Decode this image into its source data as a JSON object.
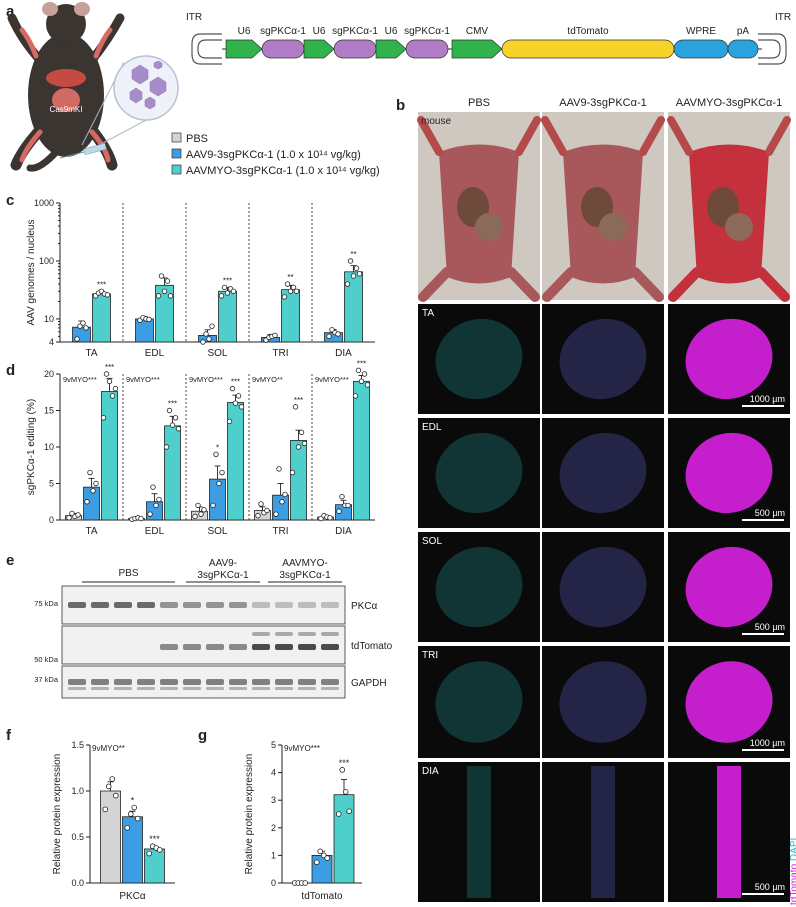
{
  "figure": {
    "panel_labels": {
      "a": "a",
      "b": "b",
      "c": "c",
      "d": "d",
      "e": "e",
      "f": "f",
      "g": "g"
    },
    "mouse_label": "Cas9mKI",
    "legend": [
      {
        "name": "PBS",
        "color": "#d4d4d4"
      },
      {
        "name": "AAV9-3sgPKCα-1 (1.0 x 10¹⁴ vg/kg)",
        "color": "#3d9de3"
      },
      {
        "name": "AAVMYO-3sgPKCα-1 (1.0 x 10¹⁴ vg/kg)",
        "color": "#4ecfcb"
      }
    ],
    "construct": {
      "itr_left": "ITR",
      "itr_right": "ITR",
      "elements": [
        {
          "label": "U6",
          "color": "#2fb34a"
        },
        {
          "label": "sgPKCα-1",
          "color": "#b07cc6"
        },
        {
          "label": "U6",
          "color": "#2fb34a"
        },
        {
          "label": "sgPKCα-1",
          "color": "#b07cc6"
        },
        {
          "label": "U6",
          "color": "#2fb34a"
        },
        {
          "label": "sgPKCα-1",
          "color": "#b07cc6"
        },
        {
          "label": "CMV",
          "color": "#2fb34a"
        },
        {
          "label": "tdTomato",
          "color": "#f7d32a"
        },
        {
          "label": "WPRE",
          "color": "#2aa2dd"
        },
        {
          "label": "pA",
          "color": "#2aa2dd"
        }
      ]
    },
    "panel_b": {
      "columns": [
        "PBS",
        "AAV9-3sgPKCα-1",
        "AAVMYO-3sgPKCα-1"
      ],
      "photo_label": "mouse",
      "rows": [
        {
          "tissue": "TA",
          "scale": "1000 µm"
        },
        {
          "tissue": "EDL",
          "scale": "500 µm"
        },
        {
          "tissue": "SOL",
          "scale": "500 µm"
        },
        {
          "tissue": "TRI",
          "scale": "1000 µm"
        },
        {
          "tissue": "DIA",
          "scale": "500 µm"
        }
      ],
      "side_label_red": "tdTomato",
      "side_label_cyan": "DAPI"
    },
    "panel_e": {
      "groups": [
        "PBS",
        "AAV9-\n3sgPKCα-1",
        "AAVMYO-\n3sgPKCα-1"
      ],
      "group_line1": [
        "PBS",
        "AAV9-",
        "AAVMYO-"
      ],
      "group_line2": [
        "",
        "3sgPKCα-1",
        "3sgPKCα-1"
      ],
      "blots": [
        {
          "marker": "75 kDa",
          "protein": "PKCα"
        },
        {
          "marker": "50 kDa",
          "protein": "tdTomato"
        },
        {
          "marker": "37 kDa",
          "protein": "GAPDH"
        }
      ]
    }
  },
  "chart_data": [
    {
      "id": "c",
      "type": "bar",
      "ylabel": "AAV genomes / nucleus",
      "yscale": "log",
      "ylim": [
        4,
        1000
      ],
      "yticks": [
        "4",
        "10",
        "100",
        "1000"
      ],
      "categories": [
        "TA",
        "EDL",
        "SOL",
        "TRI",
        "DIA"
      ],
      "series": [
        {
          "name": "AAV9-3sgPKCα-1",
          "values": [
            7.2,
            10,
            5.2,
            4.8,
            5.8
          ],
          "errors": [
            2.0,
            1.0,
            1.3,
            0.6,
            0.8
          ],
          "points": [
            [
              4.5,
              7.5,
              8.5,
              7.0
            ],
            [
              9.5,
              10.5,
              10.0,
              9.8
            ],
            [
              3.5,
              5.5,
              4.5,
              7.5
            ],
            [
              4.3,
              4.8,
              5.0,
              5.2
            ],
            [
              5.0,
              6.5,
              5.8,
              5.5
            ]
          ]
        },
        {
          "name": "AAVMYO-3sgPKCα-1",
          "values": [
            27,
            38,
            30,
            32,
            65
          ],
          "errors": [
            3,
            13,
            5,
            6,
            18
          ],
          "points": [
            [
              25,
              28,
              30,
              27,
              26
            ],
            [
              25,
              55,
              30,
              45,
              25
            ],
            [
              25,
              35,
              28,
              33,
              30
            ],
            [
              24,
              40,
              30,
              35,
              30
            ],
            [
              40,
              100,
              55,
              75,
              60
            ]
          ]
        }
      ],
      "annotations": [
        "***",
        "",
        "***",
        "**",
        "**"
      ]
    },
    {
      "id": "d",
      "type": "bar",
      "ylabel": "sgPKCα-1 editing (%)",
      "ylim": [
        0,
        20
      ],
      "yticks": [
        "0",
        "5",
        "10",
        "15",
        "20"
      ],
      "categories": [
        "TA",
        "EDL",
        "SOL",
        "TRI",
        "DIA"
      ],
      "series": [
        {
          "name": "PBS",
          "values": [
            0.6,
            0.2,
            1.2,
            1.3,
            0.4
          ],
          "errors": [
            0.3,
            0.1,
            0.6,
            0.5,
            0.2
          ],
          "points": [
            [
              0.3,
              0.9,
              0.5,
              0.7
            ],
            [
              0.1,
              0.2,
              0.3,
              0.2
            ],
            [
              0.5,
              2.0,
              0.8,
              1.4
            ],
            [
              0.6,
              2.2,
              1.0,
              1.3
            ],
            [
              0.2,
              0.6,
              0.4,
              0.3
            ]
          ]
        },
        {
          "name": "AAV9-3sgPKCα-1",
          "values": [
            4.5,
            2.5,
            5.6,
            3.4,
            2.1
          ],
          "errors": [
            1.2,
            1.1,
            1.8,
            1.6,
            0.6
          ],
          "points": [
            [
              2.5,
              6.5,
              4.0,
              5.0
            ],
            [
              0.8,
              4.5,
              2.0,
              2.8
            ],
            [
              2.0,
              9.0,
              5.0,
              6.5
            ],
            [
              0.8,
              7.0,
              2.5,
              3.5
            ],
            [
              1.2,
              3.2,
              2.0,
              2.0
            ]
          ]
        },
        {
          "name": "AAVMYO-3sgPKCα-1",
          "values": [
            17.6,
            12.9,
            16.1,
            10.9,
            19.0
          ],
          "errors": [
            1.8,
            1.3,
            1.0,
            1.4,
            0.8
          ],
          "points": [
            [
              14,
              20,
              19,
              17,
              18
            ],
            [
              10,
              15,
              13,
              14,
              12.5
            ],
            [
              13.5,
              18,
              16,
              17,
              15.5
            ],
            [
              6.5,
              15.5,
              10,
              12,
              10.5
            ],
            [
              17,
              20.5,
              19,
              20,
              18.5
            ]
          ]
        }
      ],
      "group_annotations": [
        "9vMYO***",
        "9vMYO***",
        "9vMYO***",
        "9vMYO**",
        "9vMYO***"
      ],
      "annotations_aav9": [
        "",
        "",
        "*",
        "",
        ""
      ],
      "annotations_myo": [
        "***",
        "***",
        "***",
        "***",
        "***"
      ]
    },
    {
      "id": "f",
      "type": "bar",
      "ylabel": "Relative protein expression",
      "xlabel": "PKCα",
      "ylim": [
        0,
        1.5
      ],
      "yticks": [
        "0.0",
        "0.5",
        "1.0",
        "1.5"
      ],
      "categories": [
        "PBS",
        "AAV9-3sgPKCα-1",
        "AAVMYO-3sgPKCα-1"
      ],
      "values": [
        1.0,
        0.72,
        0.37
      ],
      "errors": [
        0.1,
        0.06,
        0.03
      ],
      "points": [
        [
          0.8,
          1.05,
          1.13,
          0.95
        ],
        [
          0.6,
          0.75,
          0.82,
          0.7
        ],
        [
          0.32,
          0.4,
          0.38,
          0.36
        ]
      ],
      "colors": [
        "#d4d4d4",
        "#3d9de3",
        "#4ecfcb"
      ],
      "top_annotation": "9vMYO**",
      "annotations": [
        "",
        "*",
        "***"
      ]
    },
    {
      "id": "g",
      "type": "bar",
      "ylabel": "Relative protein expression",
      "xlabel": "tdTomato",
      "ylim": [
        0,
        5
      ],
      "yticks": [
        "0",
        "1",
        "2",
        "3",
        "4",
        "5"
      ],
      "categories": [
        "PBS",
        "AAV9-3sgPKCα-1",
        "AAVMYO-3sgPKCα-1"
      ],
      "values": [
        0.0,
        1.0,
        3.2
      ],
      "errors": [
        0,
        0.15,
        0.55
      ],
      "points": [
        [
          0,
          0,
          0,
          0
        ],
        [
          0.75,
          1.15,
          1.0,
          0.9
        ],
        [
          2.5,
          4.1,
          3.3,
          2.6
        ]
      ],
      "colors": [
        "#d4d4d4",
        "#3d9de3",
        "#4ecfcb"
      ],
      "top_annotation": "9vMYO***",
      "annotations": [
        "",
        "",
        "***"
      ]
    }
  ]
}
